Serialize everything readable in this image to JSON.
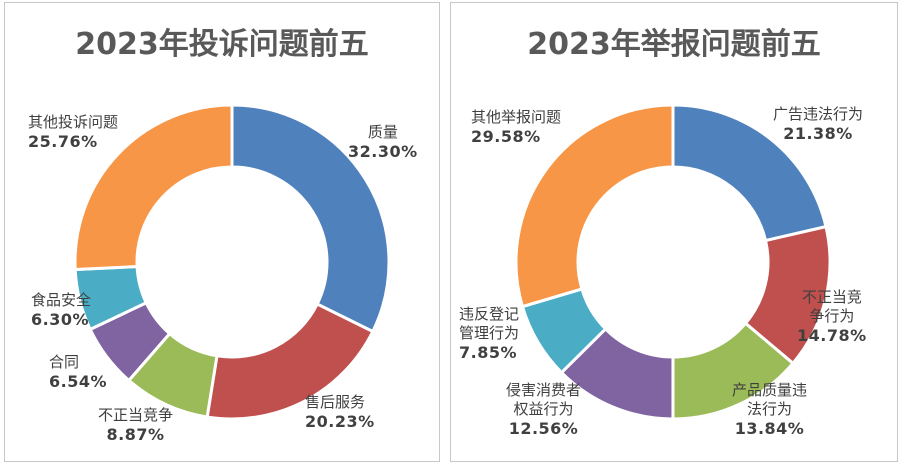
{
  "chart_data": [
    {
      "type": "pie",
      "title": "2023年投诉问题前五",
      "slices": [
        {
          "label": "质量",
          "value": 32.3,
          "pct_text": "32.30%",
          "color": "#4f81bd"
        },
        {
          "label": "售后服务",
          "value": 20.23,
          "pct_text": "20.23%",
          "color": "#c0504d"
        },
        {
          "label": "不正当竞争",
          "value": 8.87,
          "pct_text": "8.87%",
          "color": "#9bbb59"
        },
        {
          "label": "合同",
          "value": 6.54,
          "pct_text": "6.54%",
          "color": "#8064a2"
        },
        {
          "label": "食品安全",
          "value": 6.3,
          "pct_text": "6.30%",
          "color": "#4bacc6"
        },
        {
          "label": "其他投诉问题",
          "value": 25.76,
          "pct_text": "25.76%",
          "color": "#f79646"
        }
      ]
    },
    {
      "type": "pie",
      "title": "2023年举报问题前五",
      "slices": [
        {
          "label": "广告违法行为",
          "value": 21.38,
          "pct_text": "21.38%",
          "color": "#4f81bd"
        },
        {
          "label": "不正当竞争行为",
          "value": 14.78,
          "pct_text": "14.78%",
          "color": "#c0504d",
          "label_lines": [
            "不正当竞",
            "争行为"
          ]
        },
        {
          "label": "产品质量违法行为",
          "value": 13.84,
          "pct_text": "13.84%",
          "color": "#9bbb59",
          "label_lines": [
            "产品质量违",
            "法行为"
          ]
        },
        {
          "label": "侵害消费者权益行为",
          "value": 12.56,
          "pct_text": "12.56%",
          "color": "#8064a2",
          "label_lines": [
            "侵害消费者",
            "权益行为"
          ]
        },
        {
          "label": "违反登记管理行为",
          "value": 7.85,
          "pct_text": "7.85%",
          "color": "#4bacc6",
          "label_lines": [
            "违反登记",
            "管理行为"
          ]
        },
        {
          "label": "其他举报问题",
          "value": 29.58,
          "pct_text": "29.58%",
          "color": "#f79646"
        }
      ]
    }
  ]
}
